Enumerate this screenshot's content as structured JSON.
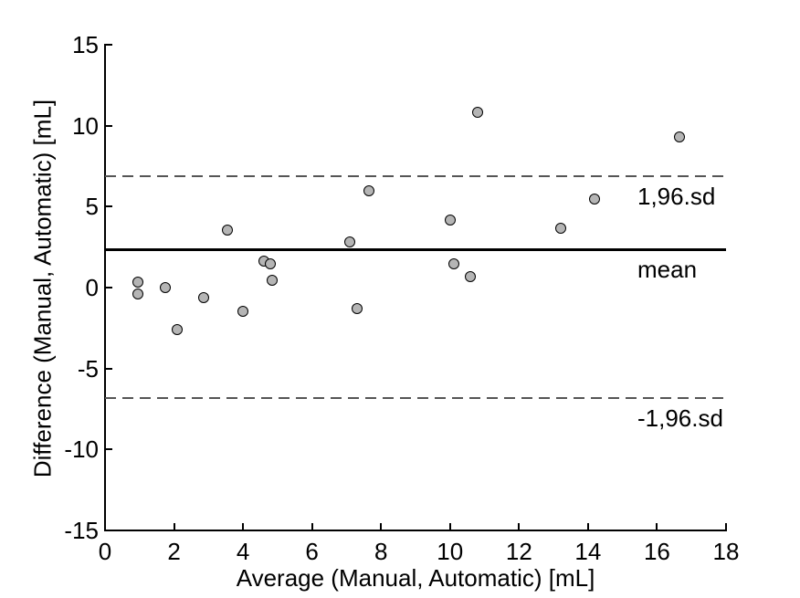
{
  "figure": {
    "kind": "Bland-Altman scatter plot"
  },
  "colors": {
    "background": "#ffffff",
    "axis": "#000000",
    "text": "#000000",
    "marker_fill": "#b5b5b5",
    "marker_edge": "#000000",
    "mean_line": "#000000",
    "limit_line": "#555555"
  },
  "chart_data": {
    "type": "scatter",
    "title": "",
    "xlabel": "Average (Manual, Automatic) [mL]",
    "ylabel": "Difference (Manual, Automatic) [mL]",
    "xlim": [
      0,
      18
    ],
    "ylim": [
      -15,
      15
    ],
    "x_ticks": [
      0,
      2,
      4,
      6,
      8,
      10,
      12,
      14,
      16,
      18
    ],
    "y_ticks": [
      -15,
      -10,
      -5,
      0,
      5,
      10,
      15
    ],
    "grid": false,
    "legend": "none",
    "marker": "gray-filled-circle",
    "points": [
      {
        "x": 0.95,
        "y": 0.35
      },
      {
        "x": 0.95,
        "y": -0.4
      },
      {
        "x": 1.75,
        "y": 0.0
      },
      {
        "x": 2.1,
        "y": -2.6
      },
      {
        "x": 2.85,
        "y": -0.6
      },
      {
        "x": 3.55,
        "y": 3.55
      },
      {
        "x": 4.0,
        "y": -1.45
      },
      {
        "x": 4.6,
        "y": 1.65
      },
      {
        "x": 4.8,
        "y": 1.45
      },
      {
        "x": 4.85,
        "y": 0.45
      },
      {
        "x": 7.1,
        "y": 2.8
      },
      {
        "x": 7.3,
        "y": -1.3
      },
      {
        "x": 7.65,
        "y": 6.0
      },
      {
        "x": 10.0,
        "y": 4.2
      },
      {
        "x": 10.1,
        "y": 1.45
      },
      {
        "x": 10.6,
        "y": 0.65
      },
      {
        "x": 10.8,
        "y": 10.8
      },
      {
        "x": 13.2,
        "y": 3.65
      },
      {
        "x": 14.2,
        "y": 5.45
      },
      {
        "x": 16.65,
        "y": 9.3
      }
    ],
    "reference_lines": [
      {
        "name": "upper-limit",
        "label": "1,96.sd",
        "value": 6.9,
        "style": "dashed"
      },
      {
        "name": "mean",
        "label": "mean",
        "value": 2.35,
        "style": "solid"
      },
      {
        "name": "lower-limit",
        "label": "-1,96.sd",
        "value": -6.85,
        "style": "dashed"
      }
    ]
  }
}
